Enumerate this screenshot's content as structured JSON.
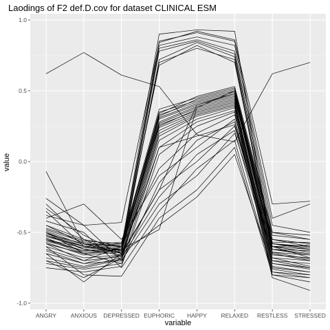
{
  "chart_data": {
    "type": "line",
    "title": "Laodings of F2 def.D.cov for dataset CLINICAL ESM",
    "xlabel": "variable",
    "ylabel": "value",
    "categories": [
      "ANGRY",
      "ANXIOUS",
      "DEPRESSED",
      "EUPHORIC",
      "HAPPY",
      "RELAXED",
      "RESTLESS",
      "STRESSED"
    ],
    "ylim": [
      -1.0,
      1.0
    ],
    "yticks": [
      -1.0,
      -0.5,
      0.0,
      0.5,
      1.0
    ],
    "ytick_labels": [
      "-1.0",
      "-0.5",
      "0.0",
      "0.5",
      "1.0"
    ],
    "grid": true,
    "line_color": "#000000",
    "panel_color": "#ebebeb",
    "series": [
      {
        "values": [
          0.62,
          0.77,
          0.61,
          0.53,
          0.19,
          0.14,
          0.62,
          0.7
        ]
      },
      {
        "values": [
          -0.07,
          -0.58,
          -0.63,
          0.85,
          0.91,
          0.85,
          -0.4,
          -0.3
        ]
      },
      {
        "values": [
          -0.26,
          -0.45,
          -0.43,
          0.84,
          0.92,
          0.86,
          -0.3,
          -0.28
        ]
      },
      {
        "values": [
          -0.3,
          -0.55,
          -0.6,
          0.82,
          0.88,
          0.82,
          -0.45,
          -0.5
        ]
      },
      {
        "values": [
          -0.35,
          -0.6,
          -0.62,
          0.8,
          0.86,
          0.78,
          -0.5,
          -0.55
        ]
      },
      {
        "values": [
          -0.45,
          -0.58,
          -0.65,
          0.78,
          0.85,
          0.76,
          -0.55,
          -0.58
        ]
      },
      {
        "values": [
          -0.5,
          -0.62,
          -0.66,
          0.72,
          0.84,
          0.74,
          -0.6,
          -0.62
        ]
      },
      {
        "values": [
          -0.52,
          -0.6,
          -0.64,
          0.7,
          0.8,
          0.72,
          -0.62,
          -0.65
        ]
      },
      {
        "values": [
          -0.55,
          -0.63,
          -0.62,
          0.68,
          0.82,
          0.7,
          -0.58,
          -0.6
        ]
      },
      {
        "values": [
          -0.48,
          -0.57,
          -0.6,
          0.9,
          0.93,
          0.92,
          -0.65,
          -0.7
        ]
      },
      {
        "values": [
          -0.5,
          -0.6,
          -0.58,
          0.37,
          0.45,
          0.52,
          -0.55,
          -0.6
        ]
      },
      {
        "values": [
          -0.52,
          -0.62,
          -0.6,
          0.35,
          0.43,
          0.5,
          -0.58,
          -0.62
        ]
      },
      {
        "values": [
          -0.54,
          -0.64,
          -0.62,
          0.33,
          0.42,
          0.49,
          -0.6,
          -0.64
        ]
      },
      {
        "values": [
          -0.56,
          -0.63,
          -0.61,
          0.31,
          0.41,
          0.48,
          -0.62,
          -0.63
        ]
      },
      {
        "values": [
          -0.58,
          -0.65,
          -0.63,
          0.3,
          0.4,
          0.47,
          -0.64,
          -0.66
        ]
      },
      {
        "values": [
          -0.55,
          -0.61,
          -0.59,
          0.28,
          0.39,
          0.46,
          -0.66,
          -0.68
        ]
      },
      {
        "values": [
          -0.53,
          -0.6,
          -0.62,
          0.27,
          0.38,
          0.45,
          -0.6,
          -0.59
        ]
      },
      {
        "values": [
          -0.51,
          -0.58,
          -0.6,
          0.25,
          0.37,
          0.44,
          -0.57,
          -0.57
        ]
      },
      {
        "values": [
          -0.57,
          -0.66,
          -0.64,
          0.26,
          0.36,
          0.43,
          -0.68,
          -0.7
        ]
      },
      {
        "values": [
          -0.6,
          -0.68,
          -0.66,
          0.24,
          0.35,
          0.42,
          -0.7,
          -0.72
        ]
      },
      {
        "values": [
          -0.49,
          -0.59,
          -0.57,
          0.32,
          0.44,
          0.51,
          -0.52,
          -0.55
        ]
      },
      {
        "values": [
          -0.47,
          -0.56,
          -0.58,
          0.34,
          0.46,
          0.53,
          -0.5,
          -0.52
        ]
      },
      {
        "values": [
          -0.62,
          -0.7,
          -0.67,
          0.22,
          0.34,
          0.41,
          -0.72,
          -0.75
        ]
      },
      {
        "values": [
          -0.65,
          -0.72,
          -0.7,
          0.2,
          0.33,
          0.4,
          -0.74,
          -0.78
        ]
      },
      {
        "values": [
          -0.68,
          -0.74,
          -0.68,
          0.18,
          0.32,
          0.39,
          -0.76,
          -0.8
        ]
      },
      {
        "values": [
          -0.7,
          -0.75,
          -0.69,
          0.15,
          0.3,
          0.38,
          -0.78,
          -0.82
        ]
      },
      {
        "values": [
          -0.72,
          -0.76,
          -0.72,
          0.1,
          0.28,
          0.36,
          -0.8,
          -0.85
        ]
      },
      {
        "values": [
          -0.75,
          -0.78,
          -0.74,
          0.05,
          0.25,
          0.35,
          -0.82,
          -0.91
        ]
      },
      {
        "values": [
          -0.4,
          -0.3,
          -0.55,
          -0.1,
          0.1,
          0.3,
          -0.7,
          -0.75
        ]
      },
      {
        "values": [
          -0.33,
          -0.52,
          -0.65,
          -0.2,
          0.0,
          0.25,
          -0.65,
          -0.7
        ]
      },
      {
        "values": [
          -0.38,
          -0.45,
          -0.7,
          -0.3,
          -0.1,
          0.2,
          -0.6,
          -0.68
        ]
      },
      {
        "values": [
          -0.42,
          -0.5,
          -0.75,
          -0.35,
          -0.05,
          0.15,
          -0.78,
          -0.8
        ]
      },
      {
        "values": [
          -0.6,
          -0.8,
          -0.81,
          -0.4,
          -0.2,
          0.1,
          -0.8,
          -0.82
        ]
      },
      {
        "values": [
          -0.65,
          -0.85,
          -0.65,
          -0.45,
          -0.25,
          0.05,
          -0.75,
          -0.78
        ]
      },
      {
        "values": [
          -0.7,
          -0.82,
          -0.68,
          -0.25,
          0.05,
          0.22,
          -0.72,
          -0.76
        ]
      },
      {
        "values": [
          -0.55,
          -0.65,
          -0.72,
          -0.15,
          0.15,
          0.28,
          -0.68,
          -0.74
        ]
      },
      {
        "values": [
          -0.58,
          -0.7,
          -0.6,
          -0.05,
          0.2,
          0.33,
          -0.62,
          -0.66
        ]
      },
      {
        "values": [
          -0.45,
          -0.55,
          -0.67,
          0.1,
          0.18,
          0.26,
          -0.64,
          -0.69
        ]
      },
      {
        "values": [
          -0.5,
          -0.65,
          -0.62,
          -0.48,
          0.38,
          0.5,
          -0.55,
          -0.58
        ]
      },
      {
        "values": [
          -0.63,
          -0.72,
          -0.66,
          -0.2,
          0.4,
          0.48,
          -0.58,
          -0.61
        ]
      }
    ]
  }
}
